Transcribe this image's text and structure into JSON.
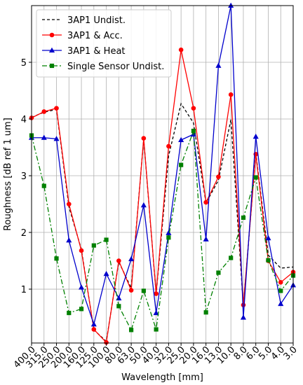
{
  "chart_data": {
    "type": "line",
    "title": "",
    "xlabel": "Wavelength [mm]",
    "ylabel": "Roughness [dB ref 1 um]",
    "categories": [
      "400.0",
      "315.0",
      "250.0",
      "200.0",
      "160.0",
      "125.0",
      "100.0",
      "80.0",
      "63.0",
      "50.0",
      "40.0",
      "32.0",
      "25.0",
      "20.0",
      "16.0",
      "13.0",
      "10.0",
      "8.0",
      "6.0",
      "5.0",
      "4.0",
      "3.0"
    ],
    "y_ticks": [
      1,
      2,
      3,
      4,
      5
    ],
    "ylim": [
      0.05,
      6.0
    ],
    "grid": true,
    "legend_position": "top-left",
    "series": [
      {
        "name": "3AP1 Undist.",
        "color": "#000000",
        "dash": "4,3",
        "marker": "none",
        "values": [
          4.03,
          4.12,
          4.17,
          2.45,
          1.7,
          0.28,
          0.08,
          1.48,
          1.02,
          3.65,
          0.91,
          3.35,
          4.27,
          3.93,
          2.52,
          2.92,
          3.99,
          0.7,
          3.4,
          1.6,
          1.37,
          1.39
        ]
      },
      {
        "name": "3AP1 & Acc.",
        "color": "#ff0000",
        "dash": "",
        "marker": "circle",
        "values": [
          4.02,
          4.13,
          4.19,
          2.5,
          1.68,
          0.29,
          0.06,
          1.5,
          0.98,
          3.66,
          0.92,
          3.52,
          5.22,
          4.19,
          2.53,
          2.98,
          4.43,
          0.72,
          3.38,
          1.5,
          1.12,
          1.3
        ]
      },
      {
        "name": "3AP1 & Heat",
        "color": "#0000cc",
        "dash": "",
        "marker": "triangle",
        "values": [
          3.67,
          3.67,
          3.65,
          1.86,
          1.03,
          0.38,
          1.27,
          0.84,
          1.53,
          2.48,
          0.58,
          1.99,
          3.63,
          3.73,
          1.88,
          4.94,
          6.0,
          0.5,
          3.69,
          1.9,
          0.74,
          1.07
        ]
      },
      {
        "name": "Single Sensor Undist.",
        "color": "#008000",
        "dash": "7,3,2,3",
        "marker": "square",
        "values": [
          3.71,
          2.82,
          1.54,
          0.58,
          0.65,
          1.77,
          1.87,
          0.7,
          0.28,
          0.97,
          0.29,
          1.91,
          3.19,
          3.79,
          0.59,
          1.29,
          1.55,
          2.26,
          2.97,
          1.51,
          0.97,
          1.24
        ]
      }
    ]
  }
}
